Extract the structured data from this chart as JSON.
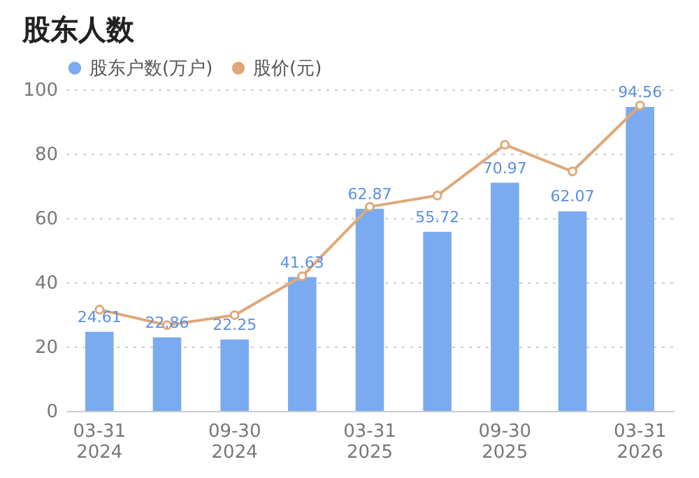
{
  "chart_data": {
    "type": "bar",
    "title": "股东人数",
    "categories": [
      "03-31\n2024",
      null,
      "09-30\n2024",
      null,
      "03-31\n2025",
      null,
      "09-30\n2025",
      null,
      "03-31\n2026"
    ],
    "series": [
      {
        "name": "股东户数(万户)",
        "color": "#7aaaf0",
        "values": [
          24.61,
          22.86,
          22.25,
          41.63,
          62.87,
          55.72,
          70.97,
          62.07,
          94.56
        ],
        "value_labels": [
          "24.61",
          "22.86",
          "22.25",
          "41.63",
          "62.87",
          "55.72",
          "70.97",
          "62.07",
          "94.56"
        ]
      },
      {
        "name": "股价(元)",
        "type": "line",
        "color": "#e0a878",
        "marker": "circle",
        "values": [
          31.5,
          26.7,
          29.8,
          41.9,
          63.5,
          67,
          82.8,
          74.5,
          95
        ]
      }
    ],
    "ylim": [
      0,
      100
    ],
    "yticks": [
      0,
      20,
      40,
      60,
      80,
      100
    ],
    "grid": "y",
    "legend": "top left"
  }
}
